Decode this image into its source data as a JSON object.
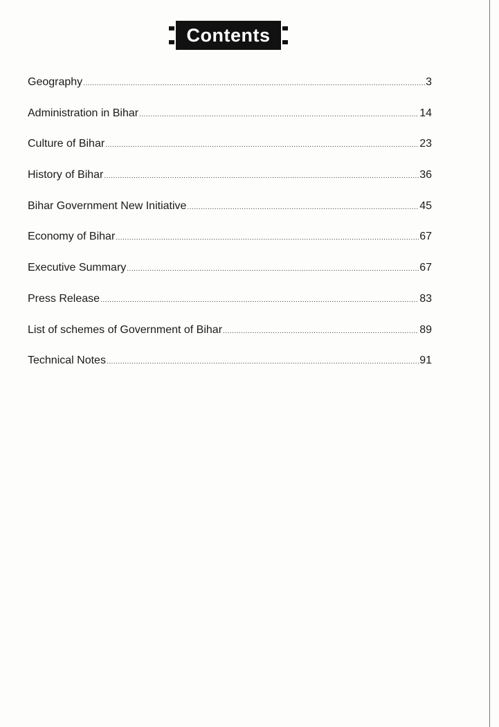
{
  "heading": "Contents",
  "entries": [
    {
      "title": "Geography",
      "page": "3"
    },
    {
      "title": "Administration in Bihar",
      "page": "14"
    },
    {
      "title": "Culture of Bihar",
      "page": "23"
    },
    {
      "title": "History of Bihar",
      "page": "36"
    },
    {
      "title": "Bihar Government New Initiative",
      "page": "45"
    },
    {
      "title": "Economy of Bihar",
      "page": "67"
    },
    {
      "title": "Executive Summary",
      "page": "67"
    },
    {
      "title": "Press Release",
      "page": "83"
    },
    {
      "title": "List of schemes of Government of Bihar",
      "page": "89"
    },
    {
      "title": "Technical Notes",
      "page": "91"
    }
  ]
}
